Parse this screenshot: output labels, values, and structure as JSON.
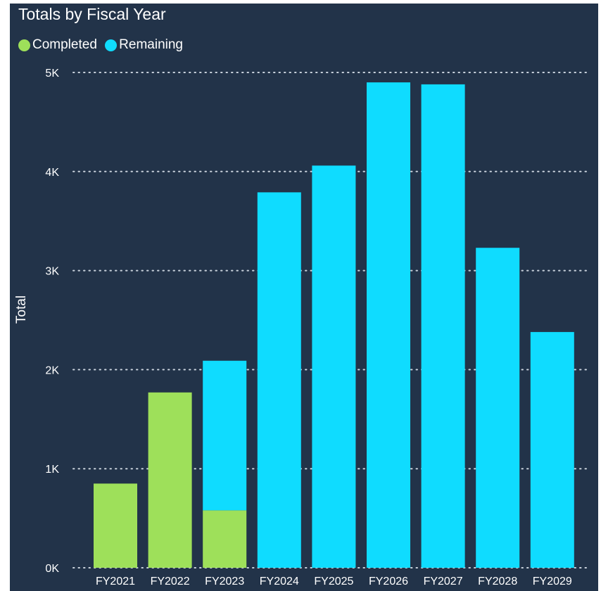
{
  "colors": {
    "background": "#223349",
    "completed": "#9ee05a",
    "remaining": "#0fdcff",
    "text": "#ffffff",
    "grid": "#c9d2dc"
  },
  "chart_data": {
    "type": "bar",
    "stacked": true,
    "title": "Totals by Fiscal Year",
    "xlabel": "",
    "ylabel": "Total",
    "categories": [
      "FY2021",
      "FY2022",
      "FY2023",
      "FY2024",
      "FY2025",
      "FY2026",
      "FY2027",
      "FY2028",
      "FY2029"
    ],
    "series": [
      {
        "name": "Completed",
        "color": "#9ee05a",
        "values": [
          850,
          1770,
          580,
          0,
          0,
          0,
          0,
          0,
          0
        ]
      },
      {
        "name": "Remaining",
        "color": "#0fdcff",
        "values": [
          0,
          0,
          1510,
          3790,
          4060,
          4900,
          4880,
          3230,
          2380
        ]
      }
    ],
    "ylim": [
      0,
      5000
    ],
    "yticks": [
      0,
      1000,
      2000,
      3000,
      4000,
      5000
    ],
    "ytick_labels": [
      "0K",
      "1K",
      "2K",
      "3K",
      "4K",
      "5K"
    ],
    "grid": "horizontal dotted",
    "legend_position": "top-left"
  }
}
